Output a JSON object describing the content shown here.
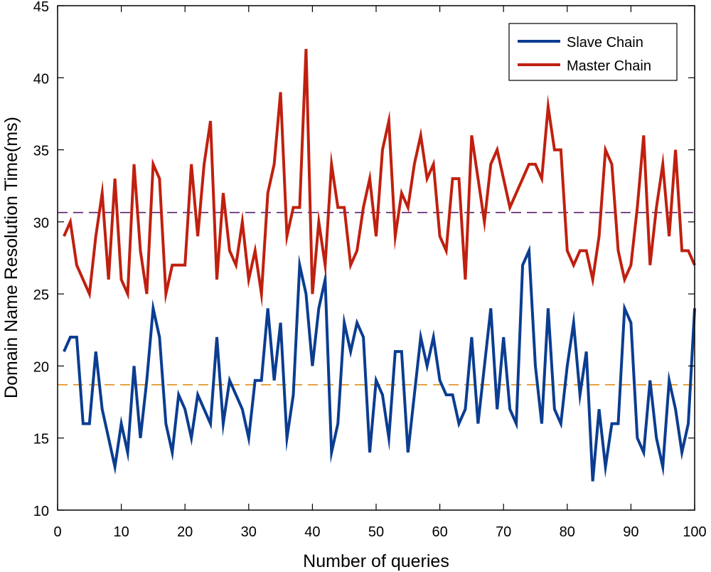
{
  "chart_data": {
    "type": "line",
    "title": "",
    "xlabel": "Number of queries",
    "ylabel": "Domain Name Resolution Time(ms)",
    "xlim": [
      0,
      100
    ],
    "ylim": [
      10,
      45
    ],
    "xticks": [
      0,
      10,
      20,
      30,
      40,
      50,
      60,
      70,
      80,
      90,
      100
    ],
    "yticks": [
      10,
      15,
      20,
      25,
      30,
      35,
      40,
      45
    ],
    "legend_position": "top-right",
    "grid": false,
    "x": [
      1,
      2,
      3,
      4,
      5,
      6,
      7,
      8,
      9,
      10,
      11,
      12,
      13,
      14,
      15,
      16,
      17,
      18,
      19,
      20,
      21,
      22,
      23,
      24,
      25,
      26,
      27,
      28,
      29,
      30,
      31,
      32,
      33,
      34,
      35,
      36,
      37,
      38,
      39,
      40,
      41,
      42,
      43,
      44,
      45,
      46,
      47,
      48,
      49,
      50,
      51,
      52,
      53,
      54,
      55,
      56,
      57,
      58,
      59,
      60,
      61,
      62,
      63,
      64,
      65,
      66,
      67,
      68,
      69,
      70,
      71,
      72,
      73,
      74,
      75,
      76,
      77,
      78,
      79,
      80,
      81,
      82,
      83,
      84,
      85,
      86,
      87,
      88,
      89,
      90,
      91,
      92,
      93,
      94,
      95,
      96,
      97,
      98,
      99,
      100
    ],
    "series": [
      {
        "name": "Slave Chain",
        "color": "#0b3d91",
        "values": [
          21,
          22,
          22,
          16,
          16,
          21,
          17,
          15,
          13,
          16,
          14,
          20,
          15,
          19,
          24,
          22,
          16,
          14,
          18,
          17,
          15,
          18,
          17,
          16,
          22,
          16,
          19,
          18,
          17,
          15,
          19,
          19,
          24,
          19,
          23,
          15,
          18,
          27,
          25,
          20,
          24,
          26,
          14,
          16,
          23,
          21,
          23,
          22,
          14,
          19,
          18,
          15,
          21,
          21,
          14,
          18,
          22,
          20,
          22,
          19,
          18,
          18,
          16,
          17,
          22,
          16,
          20,
          24,
          17,
          22,
          17,
          16,
          27,
          28,
          20,
          16,
          24,
          17,
          16,
          20,
          23,
          18,
          21,
          12,
          17,
          13,
          16,
          16,
          24,
          23,
          15,
          14,
          19,
          15,
          13,
          19,
          17,
          14,
          16,
          24
        ]
      },
      {
        "name": "Master Chain",
        "color": "#c0200f",
        "values": [
          29,
          30,
          27,
          26,
          25,
          29,
          32,
          26,
          33,
          26,
          25,
          34,
          28,
          25,
          34,
          33,
          25,
          27,
          27,
          27,
          34,
          29,
          34,
          37,
          26,
          32,
          28,
          27,
          30,
          26,
          28,
          25,
          32,
          34,
          39,
          29,
          31,
          31,
          42,
          25,
          30,
          27,
          34,
          31,
          31,
          27,
          28,
          31,
          33,
          29,
          35,
          37,
          29,
          32,
          31,
          34,
          36,
          33,
          34,
          29,
          28,
          33,
          33,
          26,
          36,
          33,
          30,
          34,
          35,
          33,
          31,
          32,
          33,
          34,
          34,
          33,
          38,
          35,
          35,
          28,
          27,
          28,
          28,
          26,
          29,
          35,
          34,
          28,
          26,
          27,
          31,
          36,
          27,
          31,
          34,
          29,
          35,
          28,
          28,
          27
        ]
      }
    ],
    "reference_lines": [
      {
        "name": "slave-mean",
        "y": 18.7,
        "color": "#e0901a"
      },
      {
        "name": "master-mean",
        "y": 30.65,
        "color": "#5a1e6e"
      }
    ]
  }
}
